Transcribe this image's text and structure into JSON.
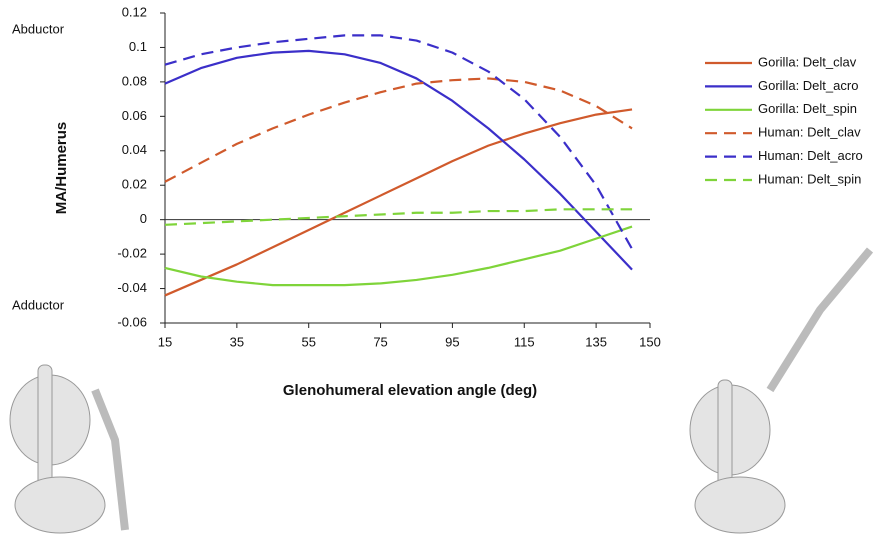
{
  "chart_data": {
    "type": "line",
    "xlabel": "Glenohumeral elevation angle (deg)",
    "ylabel": "MA/Humerus",
    "annotations": [
      "Abductor",
      "Adductor"
    ],
    "x": [
      15,
      25,
      35,
      45,
      55,
      65,
      75,
      85,
      95,
      105,
      115,
      125,
      135,
      145
    ],
    "xlim": [
      15,
      150
    ],
    "xticks": [
      15,
      35,
      55,
      75,
      95,
      115,
      135,
      150
    ],
    "ylim": [
      -0.06,
      0.12
    ],
    "yticks": [
      -0.06,
      -0.04,
      -0.02,
      0,
      0.02,
      0.04,
      0.06,
      0.08,
      0.1,
      0.12
    ],
    "legend": "right",
    "series": [
      {
        "name": "Gorilla: Delt_clav",
        "color": "#d05a2c",
        "style": "solid",
        "values": [
          -0.044,
          -0.035,
          -0.026,
          -0.016,
          -0.006,
          0.004,
          0.014,
          0.024,
          0.034,
          0.043,
          0.05,
          0.056,
          0.061,
          0.064
        ]
      },
      {
        "name": "Gorilla: Delt_acro",
        "color": "#3b2fc9",
        "style": "solid",
        "values": [
          0.079,
          0.088,
          0.094,
          0.097,
          0.098,
          0.096,
          0.091,
          0.082,
          0.069,
          0.053,
          0.035,
          0.015,
          -0.007,
          -0.029
        ]
      },
      {
        "name": "Gorilla: Delt_spin",
        "color": "#7fd43a",
        "style": "solid",
        "values": [
          -0.028,
          -0.033,
          -0.036,
          -0.038,
          -0.038,
          -0.038,
          -0.037,
          -0.035,
          -0.032,
          -0.028,
          -0.023,
          -0.018,
          -0.011,
          -0.004
        ]
      },
      {
        "name": "Human: Delt_clav",
        "color": "#d05a2c",
        "style": "dashed",
        "values": [
          0.022,
          0.033,
          0.044,
          0.053,
          0.061,
          0.068,
          0.074,
          0.079,
          0.081,
          0.082,
          0.08,
          0.075,
          0.066,
          0.053
        ]
      },
      {
        "name": "Human: Delt_acro",
        "color": "#3b2fc9",
        "style": "dashed",
        "values": [
          0.09,
          0.096,
          0.1,
          0.103,
          0.105,
          0.107,
          0.107,
          0.104,
          0.097,
          0.086,
          0.07,
          0.048,
          0.02,
          -0.017
        ]
      },
      {
        "name": "Human: Delt_spin",
        "color": "#7fd43a",
        "style": "dashed",
        "values": [
          -0.003,
          -0.002,
          -0.001,
          0,
          0.001,
          0.002,
          0.003,
          0.004,
          0.004,
          0.005,
          0.005,
          0.006,
          0.006,
          0.006
        ]
      }
    ]
  }
}
